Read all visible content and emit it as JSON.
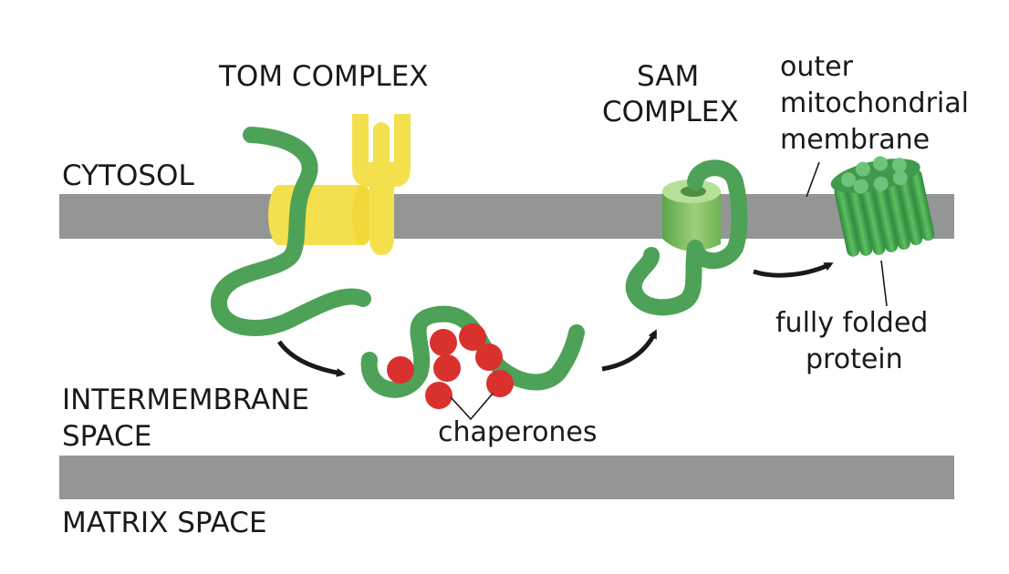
{
  "labels": {
    "cytosol": "CYTOSOL",
    "intermembrane_line1": "INTERMEMBRANE",
    "intermembrane_line2": "SPACE",
    "matrix": "MATRIX SPACE",
    "tom_complex": "TOM COMPLEX",
    "sam_line1": "SAM",
    "sam_line2": "COMPLEX",
    "outer_line1": "outer",
    "outer_line2": "mitochondrial",
    "outer_line3": "membrane",
    "chaperones": "chaperones",
    "folded_line1": "fully folded",
    "folded_line2": "protein"
  },
  "colors": {
    "membrane": "#939695",
    "protein_chain": "#4da257",
    "tom_complex": "#f4e04d",
    "chaperone": "#d9322e",
    "sam_complex": "#7cb95a",
    "arrow": "#1a1a1a"
  }
}
